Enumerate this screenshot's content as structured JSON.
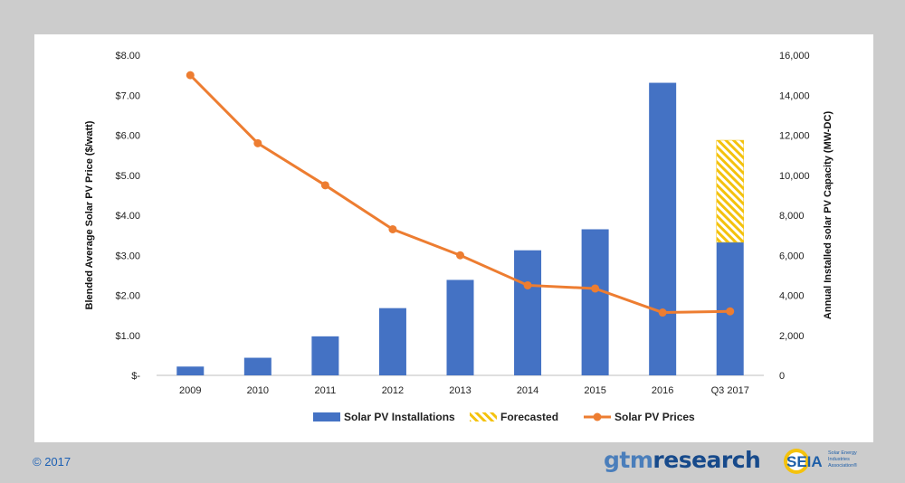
{
  "chart_data": {
    "type": "bar",
    "categories": [
      "2009",
      "2010",
      "2011",
      "2012",
      "2013",
      "2014",
      "2015",
      "2016",
      "Q3 2017"
    ],
    "series": [
      {
        "name": "Solar PV Installations",
        "type": "bar",
        "axis": "right",
        "values": [
          440,
          880,
          1950,
          3360,
          4770,
          6250,
          7300,
          14620,
          6650
        ],
        "color": "#4472c4"
      },
      {
        "name": "Forecasted",
        "type": "bar-stacked",
        "axis": "right",
        "values": [
          0,
          0,
          0,
          0,
          0,
          0,
          0,
          0,
          5100
        ],
        "color": "#f4c20d",
        "pattern": "diagonal-hatch"
      },
      {
        "name": "Solar PV Prices",
        "type": "line",
        "axis": "left",
        "values": [
          7.5,
          5.8,
          4.75,
          3.65,
          3.0,
          2.25,
          2.17,
          1.57,
          1.6
        ],
        "color": "#ed7d31"
      }
    ],
    "ylabel": "Blended Average Solar PV Price ($/watt)",
    "ylabel_right": "Annual Installed solar PV Capacity (MW-DC)",
    "ylim": [
      0,
      8
    ],
    "ylim_right": [
      0,
      16000
    ],
    "y_ticks": [
      "$-",
      "$1.00",
      "$2.00",
      "$3.00",
      "$4.00",
      "$5.00",
      "$6.00",
      "$7.00",
      "$8.00"
    ],
    "y_ticks_right": [
      "0",
      "2,000",
      "4,000",
      "6,000",
      "8,000",
      "10,000",
      "12,000",
      "14,000",
      "16,000"
    ],
    "legend_position": "bottom",
    "legend": [
      "Solar PV Installations",
      "Forecasted",
      "Solar PV Prices"
    ],
    "grid": false
  },
  "footer": {
    "copyright": "© 2017",
    "gtm_part1": "gtm",
    "gtm_part2": "research",
    "seia_short": "SEIA",
    "seia_full_line1": "Solar Energy",
    "seia_full_line2": "Industries",
    "seia_full_line3": "Association®"
  }
}
